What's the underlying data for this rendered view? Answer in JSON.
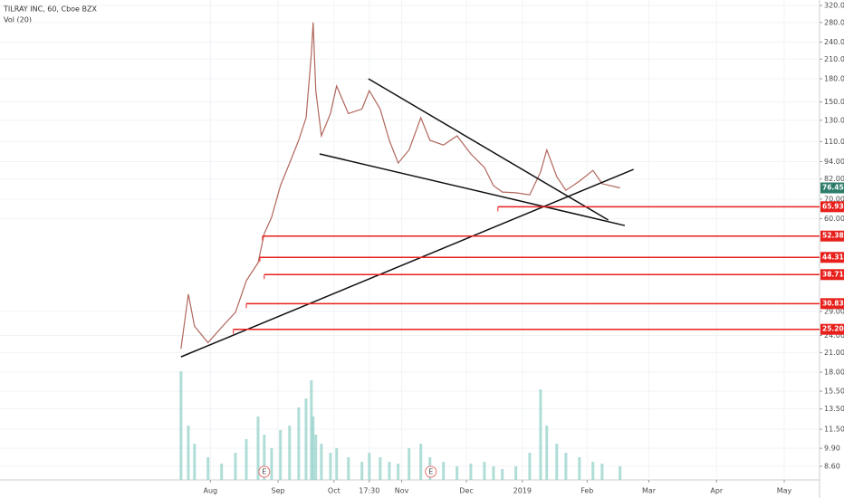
{
  "chart_data": {
    "type": "line",
    "title": "TILRAY INC, 60, Cboe BZX",
    "subtitle": "Vol (20)",
    "log_scale": true,
    "grid": true,
    "color": "#b0675c",
    "x": [
      0,
      2.5,
      4.6,
      9.2,
      13.8,
      18.5,
      22.2,
      26.2,
      28.3,
      30.8,
      33.8,
      36.9,
      40,
      42.5,
      44.3,
      44.9,
      45.8,
      47.7,
      50.8,
      52.9,
      56.9,
      61.5,
      64,
      67.7,
      70.8,
      73.8,
      77.5,
      81.5,
      84.6,
      89.2,
      93.8,
      98.5,
      103.1,
      106.2,
      109.2,
      113.8,
      118.5,
      122.2,
      124.3,
      127.7,
      130.8,
      135.4,
      140,
      143.1,
      149.2
    ],
    "values": [
      21.6,
      33.2,
      25.8,
      22.7,
      25.6,
      28.8,
      36.9,
      42.5,
      53.4,
      60.7,
      77.8,
      92.9,
      111,
      132.6,
      218,
      280,
      164,
      115,
      137,
      170,
      137,
      142,
      164,
      142,
      111,
      92.9,
      103,
      132.6,
      111,
      107,
      115,
      99.8,
      89.7,
      77.8,
      74,
      73.6,
      72.4,
      86.5,
      103,
      83.5,
      75,
      80.6,
      87.7,
      79,
      76.45
    ],
    "volume": {
      "color": "#8fcfc6",
      "values": [
        120,
        60,
        40,
        25,
        18,
        30,
        45,
        70,
        50,
        35,
        55,
        60,
        80,
        90,
        110,
        70,
        50,
        40,
        30,
        35,
        25,
        20,
        30,
        25,
        20,
        18,
        35,
        40,
        25,
        20,
        15,
        18,
        20,
        15,
        12,
        15,
        30,
        100,
        60,
        40,
        30,
        25,
        20,
        18,
        15
      ]
    },
    "last_value": {
      "value": 76.45,
      "label": "76.45",
      "color": "#2e7d6b"
    },
    "levels": [
      {
        "value": 65.93,
        "label": "65.93",
        "x_start": 107.7
      },
      {
        "value": 52.38,
        "label": "52.38",
        "x_start": 27.7
      },
      {
        "value": 44.31,
        "label": "44.31",
        "x_start": 26.8
      },
      {
        "value": 38.71,
        "label": "38.71",
        "x_start": 28.3
      },
      {
        "value": 30.83,
        "label": "30.83",
        "x_start": 22.2
      },
      {
        "value": 25.2,
        "label": "25.20",
        "x_start": 17.8
      }
    ],
    "level_color": "#e8201c",
    "trendlines": [
      {
        "x": [
          0,
          153.8
        ],
        "y": [
          20.3,
          88.4
        ]
      },
      {
        "x": [
          47.1,
          150.8
        ],
        "y": [
          99.8,
          56.9
        ]
      },
      {
        "x": [
          63.7,
          145.2
        ],
        "y": [
          180,
          59.4
        ]
      }
    ],
    "markers": [
      {
        "x": 28.3,
        "label": "E"
      },
      {
        "x": 84.9,
        "label": "E"
      }
    ],
    "xlim": [
      -61.5,
      217
    ],
    "ylim": [
      7.73,
      334
    ],
    "xticks": [
      {
        "value": 10,
        "label": "Aug"
      },
      {
        "value": 33,
        "label": "Sep"
      },
      {
        "value": 52,
        "label": "Oct"
      },
      {
        "value": 64,
        "label": "17:30"
      },
      {
        "value": 75,
        "label": "Nov"
      },
      {
        "value": 97,
        "label": "Dec"
      },
      {
        "value": 116,
        "label": "2019"
      },
      {
        "value": 138,
        "label": "Feb"
      },
      {
        "value": 159,
        "label": "Mar"
      },
      {
        "value": 182,
        "label": "Apr"
      },
      {
        "value": 205,
        "label": "May"
      }
    ],
    "yticks": [
      {
        "value": 320,
        "label": "320.00"
      },
      {
        "value": 280,
        "label": "280.00"
      },
      {
        "value": 240,
        "label": "240.00"
      },
      {
        "value": 210,
        "label": "210.00"
      },
      {
        "value": 180,
        "label": "180.00"
      },
      {
        "value": 150,
        "label": "150.00"
      },
      {
        "value": 130,
        "label": "130.00"
      },
      {
        "value": 110,
        "label": "110.00"
      },
      {
        "value": 94,
        "label": "94.00"
      },
      {
        "value": 82,
        "label": "82.00"
      },
      {
        "value": 70,
        "label": "70.00"
      },
      {
        "value": 60,
        "label": "60.00"
      },
      {
        "value": 29,
        "label": "29.00"
      },
      {
        "value": 24,
        "label": "24.00"
      },
      {
        "value": 21,
        "label": "21.00"
      },
      {
        "value": 18,
        "label": "18.00"
      },
      {
        "value": 15.5,
        "label": "15.50"
      },
      {
        "value": 13.5,
        "label": "13.50"
      },
      {
        "value": 11.5,
        "label": "11.50"
      },
      {
        "value": 9.9,
        "label": "9.90"
      },
      {
        "value": 8.6,
        "label": "8.60"
      }
    ]
  }
}
